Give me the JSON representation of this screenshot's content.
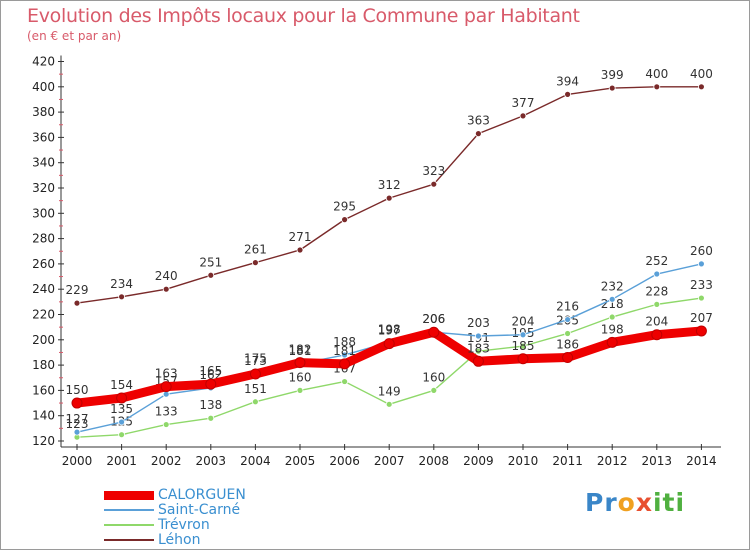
{
  "chart_data": {
    "type": "line",
    "title": "Evolution des Impôts locaux pour la Commune par Habitant",
    "subtitle": "(en € et par an)",
    "xlabel": "",
    "ylabel": "",
    "x": [
      "2000",
      "2001",
      "2002",
      "2003",
      "2004",
      "2005",
      "2006",
      "2007",
      "2008",
      "2009",
      "2010",
      "2011",
      "2012",
      "2013",
      "2014"
    ],
    "ylim": [
      120,
      420
    ],
    "yticks": [
      120,
      140,
      160,
      180,
      200,
      220,
      240,
      260,
      280,
      300,
      320,
      340,
      360,
      380,
      400,
      420
    ],
    "grid": false,
    "legend": "bottom-left",
    "series": [
      {
        "name": "Léhon",
        "color": "#7a2a2a",
        "values": [
          229,
          234,
          240,
          251,
          261,
          271,
          295,
          312,
          323,
          363,
          377,
          394,
          399,
          400,
          400
        ],
        "labels": [
          "229",
          "234",
          "240",
          "251",
          "261",
          "271",
          "295",
          "312",
          "323",
          "363",
          "377",
          "394",
          "399",
          "400",
          "400"
        ]
      },
      {
        "name": "Trévron",
        "color": "#8fd86a",
        "values": [
          123,
          125,
          133,
          138,
          151,
          160,
          167,
          149,
          160,
          191,
          195,
          205,
          218,
          228,
          233
        ],
        "labels": [
          "123",
          "125",
          "133",
          "138",
          "151",
          "160",
          "167",
          "149",
          "160",
          "191",
          "195",
          "205",
          "218",
          "228",
          "233"
        ]
      },
      {
        "name": "Saint-Carné",
        "color": "#5aa0d8",
        "values": [
          127,
          135,
          157,
          162,
          175,
          181,
          188,
          198,
          206,
          203,
          204,
          216,
          232,
          252,
          260
        ],
        "labels": [
          "127",
          "135",
          "157",
          "162",
          "175",
          "181",
          "188",
          "198",
          "206",
          "203",
          "204",
          "216",
          "232",
          "252",
          "260"
        ]
      },
      {
        "name": "CALORGUEN",
        "color": "#ee0000",
        "values": [
          150,
          154,
          163,
          165,
          173,
          182,
          181,
          197,
          206,
          183,
          185,
          186,
          198,
          204,
          207
        ],
        "labels": [
          "150",
          "154",
          "163",
          "165",
          "173",
          "182",
          "181",
          "197",
          "206",
          "183",
          "185",
          "186",
          "198",
          "204",
          "207"
        ]
      }
    ]
  },
  "legend": [
    {
      "name": "CALORGUEN",
      "color": "#ee0000"
    },
    {
      "name": "Saint-Carné",
      "color": "#5aa0d8"
    },
    {
      "name": "Trévron",
      "color": "#8fd86a"
    },
    {
      "name": "Léhon",
      "color": "#7a2a2a"
    }
  ],
  "logo": {
    "p1": "Pr",
    "p2": "o",
    "p3": "x",
    "p4": "iti"
  }
}
